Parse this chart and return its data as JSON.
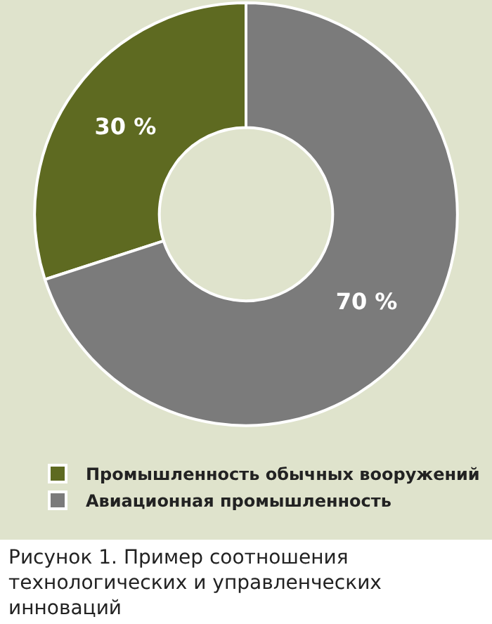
{
  "chart_data": {
    "type": "donut",
    "categories": [
      "Промышленность обычных вооружений",
      "Авиационная промышленность"
    ],
    "values": [
      30,
      70
    ],
    "colors": [
      "#5e6a21",
      "#7b7b7b"
    ],
    "value_labels": [
      "30 %",
      "70 %"
    ],
    "legend": "bottom left",
    "annotations": [
      "Рисунок 1. Пример соотношения технологических и управленческих инноваций"
    ]
  }
}
